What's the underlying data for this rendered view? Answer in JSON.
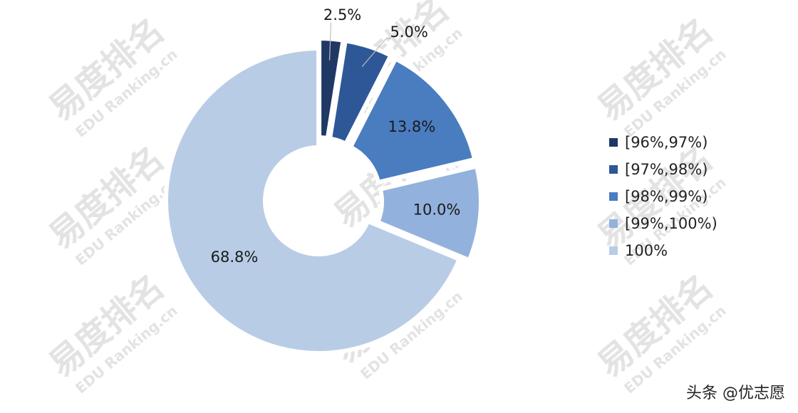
{
  "watermark": "易度排名",
  "watermark_sub": "EDU Ranking.cn",
  "source_credit": "头条 @优志愿",
  "colors": {
    "watermark": "#e3e3e3",
    "background": "#ffffff"
  },
  "chart_data": {
    "type": "pie",
    "variant": "donut-exploded",
    "title": "",
    "legend_position": "right",
    "categories": [
      "[96%,97%)",
      "[97%,98%)",
      "[98%,99%)",
      "[99%,100%)",
      "100%"
    ],
    "values": [
      2.5,
      5.0,
      13.8,
      10.0,
      68.8
    ],
    "labels": [
      "2.5%",
      "5.0%",
      "13.8%",
      "10.0%",
      "68.8%"
    ],
    "colors": [
      "#1f3864",
      "#2e5797",
      "#4a7cc0",
      "#92b1dc",
      "#b8cce6"
    ]
  }
}
